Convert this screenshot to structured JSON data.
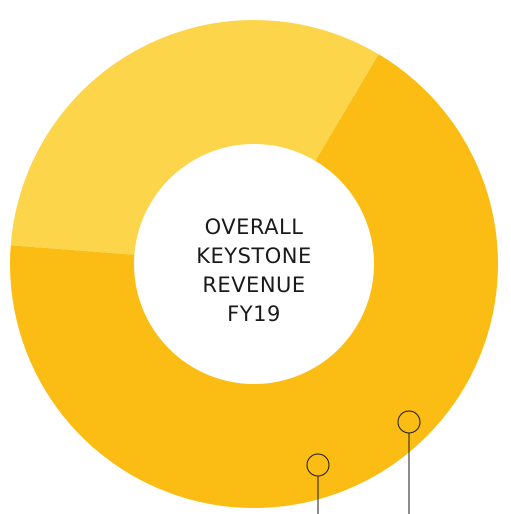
{
  "chart_data": {
    "type": "pie",
    "variant": "donut",
    "center_title_lines": [
      "OVERALL",
      "KEYSTONE",
      "REVENUE",
      "FY19"
    ],
    "slices": [
      {
        "value": 0.677,
        "color": "#FBBD13"
      },
      {
        "value": 0.323,
        "color": "#FDD54B"
      }
    ],
    "title": "",
    "legend": "none"
  }
}
